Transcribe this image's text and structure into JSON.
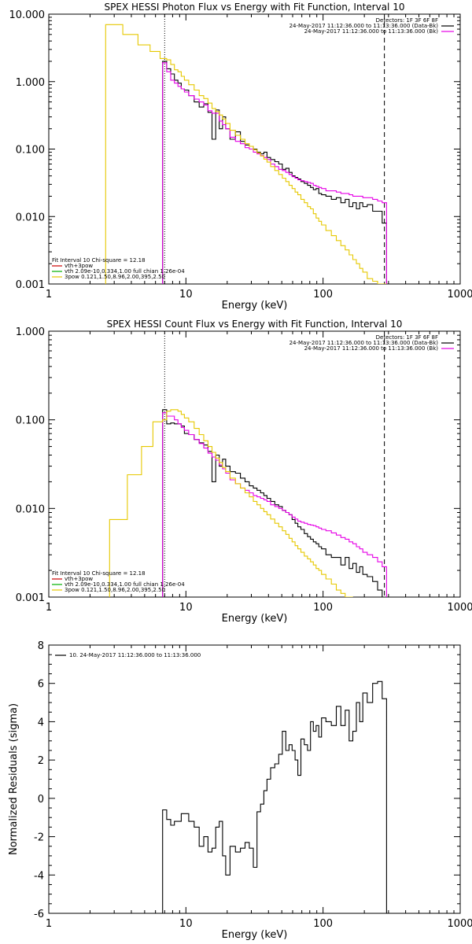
{
  "chart_data": [
    {
      "type": "line",
      "title": "SPEX HESSI Photon Flux vs Energy with Fit Function, Interval 10",
      "xlabel": "Energy (keV)",
      "ylabel": "",
      "xscale": "log",
      "yscale": "log",
      "xlim": [
        1,
        1000
      ],
      "ylim": [
        0.001,
        10
      ],
      "x_ticks": [
        "1",
        "10",
        "100",
        "1000"
      ],
      "y_ticks": [
        "0.001",
        "0.010",
        "0.100",
        "1.000",
        "10.000"
      ],
      "vlines": [
        {
          "x": 7,
          "style": "dotted"
        },
        {
          "x": 280,
          "style": "dashed"
        }
      ],
      "legend_top": [
        "Detectors: 1F 3F 6F 8F",
        "24-May-2017 11:12:36.000 to 11:13:36.000 (Data-Bk)",
        "24-May-2017 11:12:36.000 to 11:13:36.000 (Bk)"
      ],
      "legend_bottom": [
        "Fit Interval 10   Chi-square = 12.18",
        "vth+3pow",
        "vth 2.09e-10,0.334,1.00  full chian 1.26e-04",
        "3pow 0.121,1.50,8.96,2.00,395,2.50"
      ],
      "series": [
        {
          "name": "24-May-2017 11:12:36.000 to 11:13:36.000 (Data-Bk)",
          "color": "#000000",
          "x": [
            7,
            7.5,
            8,
            8.5,
            9,
            9.5,
            10,
            11,
            12,
            13,
            14,
            15,
            16,
            17,
            18,
            19,
            20,
            22,
            24,
            26,
            28,
            30,
            32,
            34,
            36,
            38,
            40,
            43,
            46,
            49,
            52,
            55,
            58,
            61,
            64,
            67,
            71,
            75,
            79,
            83,
            87,
            91,
            95,
            100,
            110,
            120,
            130,
            140,
            150,
            160,
            170,
            180,
            190,
            200,
            220,
            240,
            260,
            280
          ],
          "y": [
            2.0,
            1.55,
            1.3,
            1.05,
            0.95,
            0.78,
            0.75,
            0.62,
            0.5,
            0.42,
            0.47,
            0.35,
            0.14,
            0.38,
            0.2,
            0.3,
            0.2,
            0.14,
            0.18,
            0.13,
            0.115,
            0.11,
            0.1,
            0.09,
            0.085,
            0.09,
            0.075,
            0.07,
            0.065,
            0.06,
            0.05,
            0.052,
            0.045,
            0.04,
            0.038,
            0.036,
            0.033,
            0.031,
            0.029,
            0.027,
            0.025,
            0.026,
            0.022,
            0.021,
            0.02,
            0.018,
            0.019,
            0.016,
            0.018,
            0.014,
            0.016,
            0.013,
            0.016,
            0.014,
            0.015,
            0.012,
            0.012,
            0.008
          ]
        },
        {
          "name": "24-May-2017 11:12:36.000 to 11:13:36.000 (Bk)",
          "color": "#e600e6",
          "x": [
            7,
            7.5,
            8,
            8.5,
            9,
            9.5,
            10,
            11,
            12,
            13,
            14,
            15,
            16,
            17,
            18,
            19,
            20,
            22,
            24,
            26,
            28,
            30,
            32,
            34,
            36,
            38,
            40,
            43,
            46,
            49,
            52,
            55,
            58,
            61,
            64,
            67,
            71,
            75,
            79,
            83,
            87,
            91,
            95,
            100,
            110,
            120,
            130,
            140,
            150,
            160,
            170,
            180,
            190,
            200,
            220,
            240,
            260,
            280
          ],
          "y": [
            1.9,
            1.4,
            1.05,
            0.95,
            0.85,
            0.78,
            0.7,
            0.62,
            0.55,
            0.5,
            0.45,
            0.37,
            0.34,
            0.34,
            0.26,
            0.23,
            0.2,
            0.15,
            0.13,
            0.12,
            0.105,
            0.1,
            0.09,
            0.085,
            0.08,
            0.075,
            0.07,
            0.06,
            0.055,
            0.05,
            0.048,
            0.045,
            0.042,
            0.039,
            0.037,
            0.035,
            0.034,
            0.033,
            0.032,
            0.031,
            0.029,
            0.028,
            0.027,
            0.026,
            0.024,
            0.024,
            0.023,
            0.022,
            0.022,
            0.021,
            0.02,
            0.02,
            0.02,
            0.019,
            0.019,
            0.018,
            0.017,
            0.016
          ]
        },
        {
          "name": "vth+3pow",
          "color": "#e6c800",
          "x": [
            3,
            4,
            5,
            6,
            7,
            7.5,
            8,
            8.5,
            9,
            9.5,
            10,
            11,
            12,
            13,
            14,
            15,
            16,
            17,
            18,
            19,
            20,
            22,
            24,
            26,
            28,
            30,
            32,
            34,
            36,
            38,
            40,
            43,
            46,
            49,
            52,
            55,
            58,
            61,
            64,
            67,
            71,
            75,
            79,
            83,
            87,
            91,
            95,
            100,
            110,
            120,
            130,
            140,
            150,
            160,
            170,
            180,
            190,
            200,
            220,
            240,
            260,
            280
          ],
          "y": [
            7.0,
            5.0,
            3.5,
            2.8,
            2.2,
            2.1,
            1.8,
            1.5,
            1.4,
            1.2,
            1.05,
            0.9,
            0.75,
            0.62,
            0.56,
            0.48,
            0.4,
            0.36,
            0.32,
            0.28,
            0.24,
            0.19,
            0.16,
            0.14,
            0.12,
            0.11,
            0.098,
            0.088,
            0.079,
            0.071,
            0.064,
            0.055,
            0.048,
            0.042,
            0.037,
            0.033,
            0.029,
            0.026,
            0.023,
            0.021,
            0.018,
            0.016,
            0.014,
            0.013,
            0.011,
            0.0095,
            0.0085,
            0.0075,
            0.0062,
            0.0052,
            0.0044,
            0.0037,
            0.0032,
            0.0027,
            0.0023,
            0.002,
            0.0017,
            0.0015,
            0.0012,
            0.0011,
            0.001,
            0.001
          ]
        }
      ]
    },
    {
      "type": "line",
      "title": "SPEX HESSI Count Flux vs Energy with Fit Function, Interval 10",
      "xlabel": "Energy (keV)",
      "ylabel": "",
      "xscale": "log",
      "yscale": "log",
      "xlim": [
        1,
        1000
      ],
      "ylim": [
        0.001,
        1
      ],
      "x_ticks": [
        "1",
        "10",
        "100",
        "1000"
      ],
      "y_ticks": [
        "0.001",
        "0.010",
        "0.100",
        "1.000"
      ],
      "vlines": [
        {
          "x": 7,
          "style": "dotted"
        },
        {
          "x": 280,
          "style": "dashed"
        }
      ],
      "legend_top": [
        "Detectors: 1F 3F 6F 8F",
        "24-May-2017 11:12:36.000 to 11:13:36.000 (Data-Bk)",
        "24-May-2017 11:12:36.000 to 11:13:36.000 (Bk)"
      ],
      "legend_bottom": [
        "Fit Interval 10   Chi-square = 12.18",
        "vth+3pow",
        "vth 2.09e-10,0.334,1.00  full chian 1.26e-04",
        "3pow 0.121,1.50,8.96,2.00,395,2.50"
      ],
      "series": [
        {
          "name": "24-May-2017 11:12:36.000 to 11:13:36.000 (Data-Bk)",
          "color": "#000000",
          "x": [
            7,
            7.5,
            8,
            8.5,
            9,
            9.5,
            10,
            11,
            12,
            13,
            14,
            15,
            16,
            17,
            18,
            19,
            20,
            22,
            24,
            26,
            28,
            30,
            32,
            34,
            36,
            38,
            40,
            43,
            46,
            49,
            52,
            55,
            58,
            61,
            64,
            67,
            71,
            75,
            79,
            83,
            87,
            91,
            95,
            100,
            110,
            120,
            130,
            140,
            150,
            160,
            170,
            180,
            190,
            200,
            220,
            240,
            260,
            280
          ],
          "y": [
            0.13,
            0.09,
            0.092,
            0.09,
            0.09,
            0.085,
            0.07,
            0.068,
            0.06,
            0.055,
            0.052,
            0.044,
            0.02,
            0.04,
            0.03,
            0.036,
            0.03,
            0.026,
            0.025,
            0.022,
            0.02,
            0.018,
            0.017,
            0.016,
            0.015,
            0.014,
            0.013,
            0.012,
            0.011,
            0.0105,
            0.0095,
            0.009,
            0.0085,
            0.0075,
            0.0068,
            0.0062,
            0.0058,
            0.0052,
            0.0048,
            0.0045,
            0.0042,
            0.004,
            0.0037,
            0.0035,
            0.003,
            0.0028,
            0.0028,
            0.0023,
            0.0028,
            0.0021,
            0.0024,
            0.0019,
            0.0022,
            0.0018,
            0.0017,
            0.0015,
            0.0012,
            0.001
          ]
        },
        {
          "name": "24-May-2017 11:12:36.000 to 11:13:36.000 (Bk)",
          "color": "#e600e6",
          "x": [
            7,
            7.5,
            8,
            8.5,
            9,
            9.5,
            10,
            11,
            12,
            13,
            14,
            15,
            16,
            17,
            18,
            19,
            20,
            22,
            24,
            26,
            28,
            30,
            32,
            34,
            36,
            38,
            40,
            43,
            46,
            49,
            52,
            55,
            58,
            61,
            64,
            67,
            71,
            75,
            79,
            83,
            87,
            91,
            95,
            100,
            110,
            120,
            130,
            140,
            150,
            160,
            170,
            180,
            190,
            200,
            220,
            240,
            260,
            280
          ],
          "y": [
            0.12,
            0.11,
            0.11,
            0.1,
            0.09,
            0.082,
            0.076,
            0.068,
            0.06,
            0.054,
            0.048,
            0.042,
            0.038,
            0.035,
            0.031,
            0.028,
            0.025,
            0.021,
            0.019,
            0.017,
            0.016,
            0.015,
            0.014,
            0.0135,
            0.013,
            0.0125,
            0.012,
            0.011,
            0.0105,
            0.01,
            0.0095,
            0.009,
            0.0085,
            0.008,
            0.0076,
            0.0072,
            0.007,
            0.0068,
            0.0066,
            0.0065,
            0.0064,
            0.0062,
            0.006,
            0.0058,
            0.0056,
            0.0053,
            0.005,
            0.0047,
            0.0045,
            0.0042,
            0.004,
            0.0037,
            0.0035,
            0.0032,
            0.003,
            0.0028,
            0.0025,
            0.0022
          ]
        },
        {
          "name": "vth+3pow",
          "color": "#e6c800",
          "x": [
            3,
            3.5,
            4,
            4.5,
            5,
            5.5,
            6,
            6.5,
            7,
            7.5,
            8,
            8.5,
            9,
            9.5,
            10,
            11,
            12,
            13,
            14,
            15,
            16,
            17,
            18,
            19,
            20,
            22,
            24,
            26,
            28,
            30,
            32,
            34,
            36,
            38,
            40,
            43,
            46,
            49,
            52,
            55,
            58,
            61,
            64,
            67,
            71,
            75,
            79,
            83,
            87,
            91,
            95,
            100,
            110,
            120,
            130,
            140,
            150,
            160
          ],
          "y": [
            0.0075,
            0.0075,
            0.024,
            0.024,
            0.05,
            0.05,
            0.095,
            0.095,
            0.1,
            0.125,
            0.13,
            0.13,
            0.125,
            0.115,
            0.105,
            0.095,
            0.08,
            0.068,
            0.058,
            0.05,
            0.043,
            0.037,
            0.033,
            0.029,
            0.026,
            0.022,
            0.019,
            0.017,
            0.015,
            0.0135,
            0.012,
            0.011,
            0.01,
            0.0092,
            0.0085,
            0.0076,
            0.0068,
            0.0062,
            0.0056,
            0.0051,
            0.0046,
            0.0042,
            0.0038,
            0.0035,
            0.0032,
            0.0029,
            0.0027,
            0.0025,
            0.0023,
            0.0021,
            0.002,
            0.0018,
            0.0016,
            0.0014,
            0.0012,
            0.0011,
            0.001,
            0.001
          ]
        }
      ]
    },
    {
      "type": "line",
      "title": "",
      "xlabel": "Energy (keV)",
      "ylabel": "Normalized Residuals (sigma)",
      "xscale": "log",
      "yscale": "linear",
      "xlim": [
        1,
        1000
      ],
      "ylim": [
        -6,
        8
      ],
      "x_ticks": [
        "1",
        "10",
        "100",
        "1000"
      ],
      "y_ticks": [
        "-6",
        "-4",
        "-2",
        "0",
        "2",
        "4",
        "6",
        "8"
      ],
      "legend": [
        "10. 24-May-2017 11:12:36.000 to 11:13:36.000"
      ],
      "series": [
        {
          "name": "10. 24-May-2017 11:12:36.000 to 11:13:36.000",
          "color": "#000000",
          "x": [
            7,
            7.5,
            8,
            8.5,
            9,
            9.5,
            10,
            11,
            12,
            13,
            14,
            15,
            16,
            17,
            18,
            19,
            20,
            22,
            24,
            26,
            28,
            30,
            32,
            34,
            36,
            38,
            40,
            43,
            46,
            49,
            52,
            55,
            58,
            61,
            64,
            67,
            71,
            75,
            79,
            83,
            87,
            91,
            95,
            100,
            110,
            120,
            130,
            140,
            150,
            160,
            170,
            180,
            190,
            200,
            220,
            240,
            260,
            280
          ],
          "y": [
            -0.6,
            -1.1,
            -1.4,
            -1.2,
            -1.2,
            -0.8,
            -0.8,
            -1.2,
            -1.5,
            -2.5,
            -2.0,
            -2.8,
            -2.6,
            -1.5,
            -1.2,
            -3.0,
            -4.0,
            -2.5,
            -2.8,
            -2.6,
            -2.3,
            -2.6,
            -3.6,
            -0.7,
            -0.3,
            0.4,
            1.0,
            1.6,
            1.8,
            2.3,
            3.5,
            2.5,
            2.8,
            2.5,
            2.0,
            1.2,
            3.1,
            2.8,
            2.5,
            4.0,
            3.5,
            3.8,
            3.2,
            4.2,
            4.0,
            3.8,
            4.8,
            3.8,
            4.6,
            3.0,
            3.5,
            5.0,
            4.0,
            5.5,
            5.0,
            6.0,
            6.1,
            5.2
          ]
        }
      ]
    }
  ]
}
